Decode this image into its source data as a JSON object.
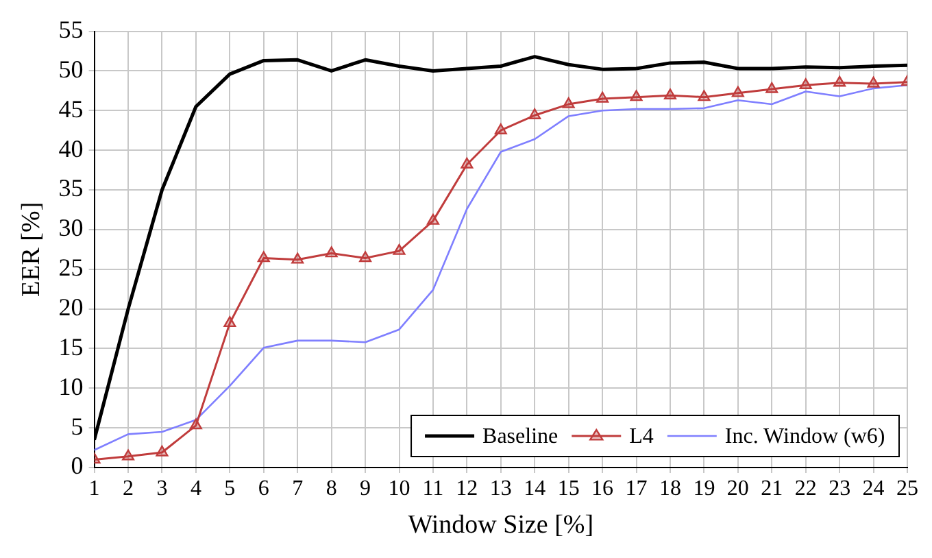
{
  "chart_data": {
    "type": "line",
    "xlabel": "Window Size [%]",
    "ylabel": "EER [%]",
    "x": [
      1,
      2,
      3,
      4,
      5,
      6,
      7,
      8,
      9,
      10,
      11,
      12,
      13,
      14,
      15,
      16,
      17,
      18,
      19,
      20,
      21,
      22,
      23,
      24,
      25
    ],
    "xlim": [
      1,
      25
    ],
    "xticks": [
      1,
      2,
      3,
      4,
      5,
      6,
      7,
      8,
      9,
      10,
      11,
      12,
      13,
      14,
      15,
      16,
      17,
      18,
      19,
      20,
      21,
      22,
      23,
      24,
      25
    ],
    "ylim": [
      0,
      55
    ],
    "yticks": [
      0,
      5,
      10,
      15,
      20,
      25,
      30,
      35,
      40,
      45,
      50,
      55
    ],
    "grid": true,
    "legend": "bottom right",
    "line_style": "solid",
    "series": [
      {
        "name": "Baseline",
        "color": "#000000",
        "marker": "none",
        "values": [
          3.5,
          20,
          35,
          45.5,
          49.6,
          51.3,
          51.4,
          50,
          51.4,
          50.6,
          50,
          50.3,
          50.6,
          51.8,
          50.8,
          50.2,
          50.3,
          51,
          51.1,
          50.3,
          50.3,
          50.5,
          50.4,
          50.6,
          50.7
        ]
      },
      {
        "name": "L4",
        "color": "#c03c3c",
        "marker": "triangle",
        "values": [
          1,
          1.4,
          1.9,
          5.3,
          18.2,
          26.4,
          26.2,
          27,
          26.4,
          27.3,
          31.1,
          38.2,
          42.5,
          44.4,
          45.8,
          46.5,
          46.7,
          46.9,
          46.7,
          47.2,
          47.7,
          48.2,
          48.5,
          48.4,
          48.6
        ]
      },
      {
        "name": "Inc. Window (w6)",
        "color": "#7f7fff",
        "marker": "none",
        "values": [
          2.2,
          4.2,
          4.5,
          6,
          10.3,
          15.1,
          16,
          16,
          15.8,
          17.4,
          22.4,
          32.6,
          39.8,
          41.4,
          44.3,
          45,
          45.2,
          45.2,
          45.3,
          46.3,
          45.8,
          47.4,
          46.8,
          47.8,
          48.2
        ]
      }
    ]
  }
}
